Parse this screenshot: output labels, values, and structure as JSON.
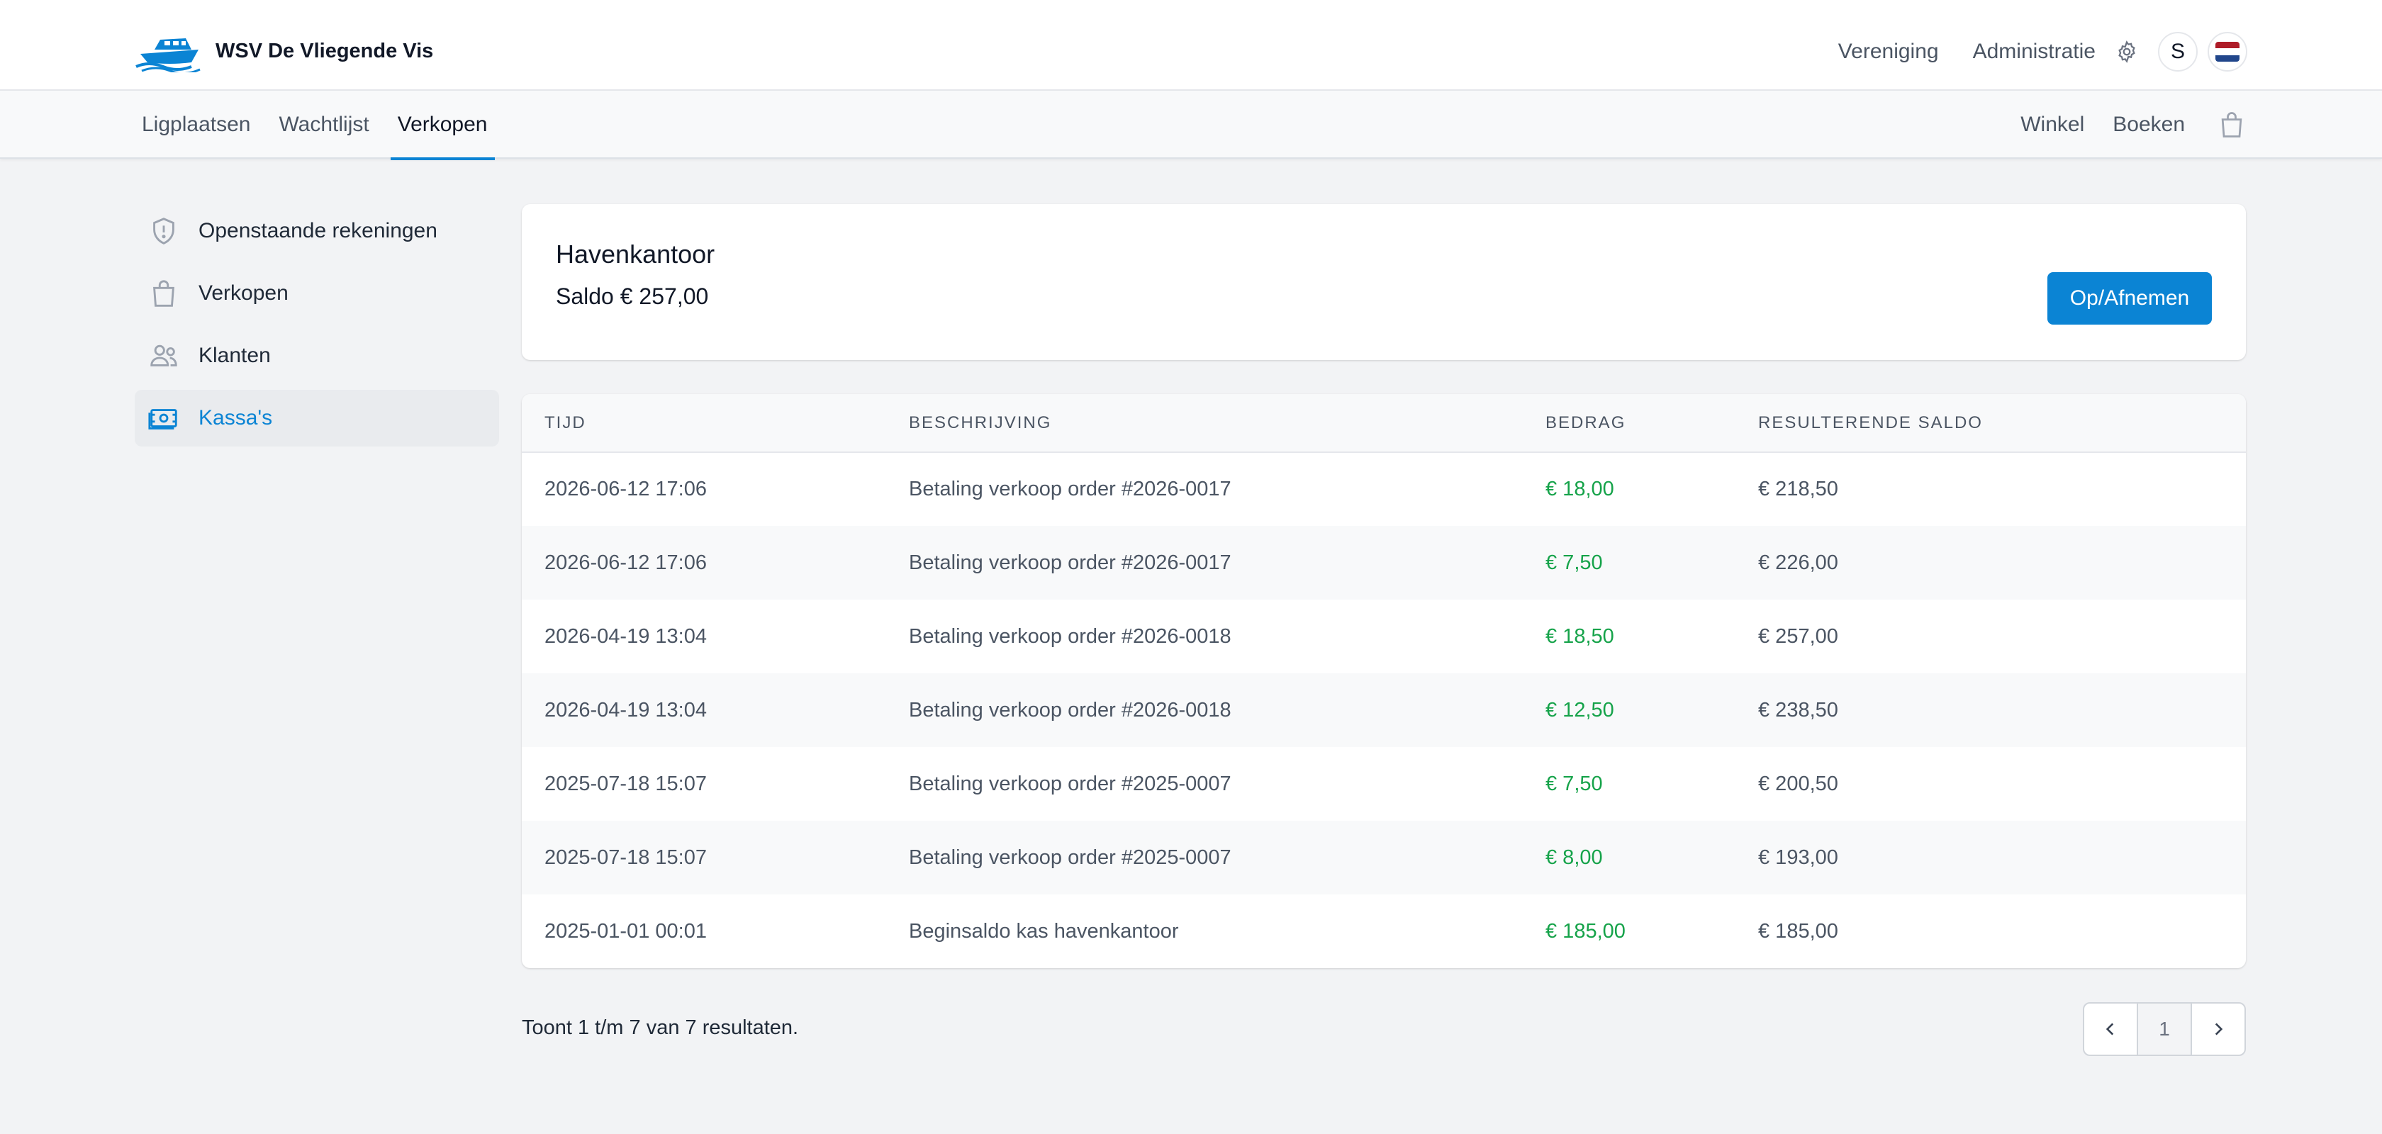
{
  "header": {
    "brand_name": "WSV De Vliegende Vis",
    "links": [
      "Vereniging",
      "Administratie"
    ],
    "avatar_initial": "S",
    "language_flag": "nl-flag-icon",
    "flag_colors": [
      "#ae1c28",
      "#ffffff",
      "#21468b"
    ]
  },
  "subnav": {
    "left": [
      "Ligplaatsen",
      "Wachtlijst",
      "Verkopen"
    ],
    "active": "Verkopen",
    "right": [
      "Winkel",
      "Boeken"
    ]
  },
  "sidebar": {
    "items": [
      {
        "label": "Openstaande rekeningen",
        "icon": "shield-exclamation-icon"
      },
      {
        "label": "Verkopen",
        "icon": "shopping-bag-icon"
      },
      {
        "label": "Klanten",
        "icon": "users-icon"
      },
      {
        "label": "Kassa's",
        "icon": "cash-icon"
      }
    ],
    "active": "Kassa's"
  },
  "kassa": {
    "title": "Havenkantoor",
    "saldo": "Saldo € 257,00",
    "button_label": "Op/Afnemen"
  },
  "table": {
    "headers": [
      "TIJD",
      "BESCHRIJVING",
      "BEDRAG",
      "RESULTERENDE SALDO"
    ],
    "rows": [
      [
        "2026-06-12 17:06",
        "Betaling verkoop order #2026-0017",
        "€ 18,00",
        "€ 218,50"
      ],
      [
        "2026-06-12 17:06",
        "Betaling verkoop order #2026-0017",
        "€ 7,50",
        "€ 226,00"
      ],
      [
        "2026-04-19 13:04",
        "Betaling verkoop order #2026-0018",
        "€ 18,50",
        "€ 257,00"
      ],
      [
        "2026-04-19 13:04",
        "Betaling verkoop order #2026-0018",
        "€ 12,50",
        "€ 238,50"
      ],
      [
        "2025-07-18 15:07",
        "Betaling verkoop order #2025-0007",
        "€ 7,50",
        "€ 200,50"
      ],
      [
        "2025-07-18 15:07",
        "Betaling verkoop order #2025-0007",
        "€ 8,00",
        "€ 193,00"
      ],
      [
        "2025-01-01 00:01",
        "Beginsaldo kas havenkantoor",
        "€ 185,00",
        "€ 185,00"
      ]
    ]
  },
  "pagination": {
    "result_text": "Toont 1 t/m 7 van 7 resultaten.",
    "current_page": "1"
  },
  "colors": {
    "accent": "#0b84d4",
    "positive_amount": "#16a34a",
    "background": "#f2f3f5"
  }
}
